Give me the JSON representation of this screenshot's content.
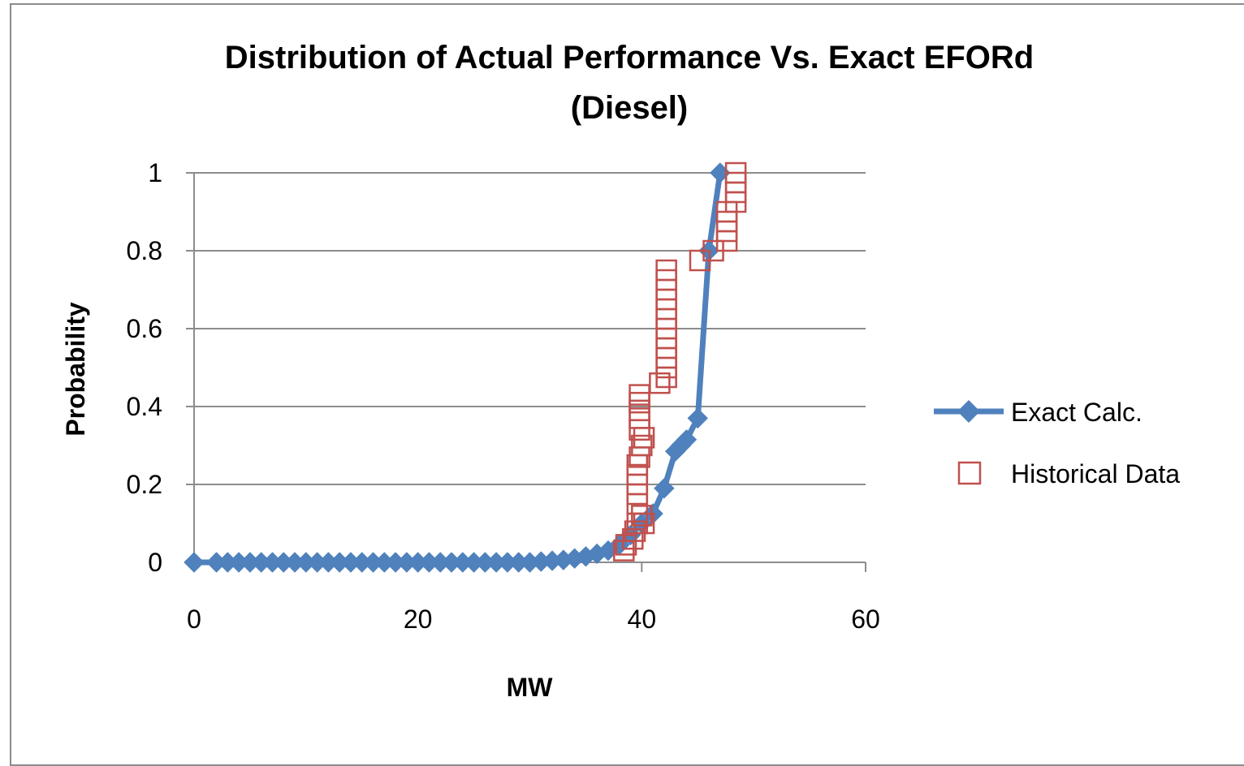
{
  "chart_data": {
    "type": "scatter",
    "title": "Distribution of Actual Performance Vs. Exact EFORd",
    "subtitle": "(Diesel)",
    "xlabel": "MW",
    "ylabel": "Probability",
    "xlim": [
      0,
      60
    ],
    "ylim": [
      0,
      1
    ],
    "xticks": [
      "0",
      "20",
      "40",
      "60"
    ],
    "yticks": [
      "0",
      "0.2",
      "0.4",
      "0.6",
      "0.8",
      "1"
    ],
    "grid": "horizontal",
    "legend_position": "right",
    "series": [
      {
        "name": "Exact Calc.",
        "style": "line-diamond",
        "color": "#4f81bd",
        "points": [
          [
            0,
            0
          ],
          [
            2,
            0
          ],
          [
            3,
            0
          ],
          [
            4,
            0
          ],
          [
            5,
            0
          ],
          [
            6,
            0
          ],
          [
            7,
            0
          ],
          [
            8,
            0
          ],
          [
            9,
            0
          ],
          [
            10,
            0
          ],
          [
            11,
            0
          ],
          [
            12,
            0
          ],
          [
            13,
            0
          ],
          [
            14,
            0
          ],
          [
            15,
            0
          ],
          [
            16,
            0
          ],
          [
            17,
            0
          ],
          [
            18,
            0
          ],
          [
            19,
            0
          ],
          [
            20,
            0
          ],
          [
            21,
            0
          ],
          [
            22,
            0
          ],
          [
            23,
            0
          ],
          [
            24,
            0
          ],
          [
            25,
            0
          ],
          [
            26,
            0
          ],
          [
            27,
            0
          ],
          [
            28,
            0
          ],
          [
            29,
            0
          ],
          [
            30,
            0
          ],
          [
            31,
            0.002
          ],
          [
            32,
            0.004
          ],
          [
            33,
            0.006
          ],
          [
            34,
            0.01
          ],
          [
            35,
            0.015
          ],
          [
            36,
            0.022
          ],
          [
            37,
            0.03
          ],
          [
            38,
            0.045
          ],
          [
            39,
            0.07
          ],
          [
            40,
            0.1
          ],
          [
            41,
            0.125
          ],
          [
            42,
            0.19
          ],
          [
            43,
            0.285
          ],
          [
            43.5,
            0.3
          ],
          [
            44,
            0.315
          ],
          [
            45,
            0.37
          ],
          [
            46,
            0.8
          ],
          [
            47,
            1
          ]
        ]
      },
      {
        "name": "Historical Data",
        "style": "open-square",
        "color": "#c0504d",
        "points": [
          [
            38.4,
            0.03
          ],
          [
            38.6,
            0.045
          ],
          [
            39.2,
            0.06
          ],
          [
            39.4,
            0.08
          ],
          [
            39.6,
            0.1
          ],
          [
            40,
            0.12
          ],
          [
            40.2,
            0.1
          ],
          [
            39.6,
            0.15
          ],
          [
            39.6,
            0.175
          ],
          [
            39.6,
            0.2
          ],
          [
            39.6,
            0.225
          ],
          [
            39.6,
            0.25
          ],
          [
            39.8,
            0.27
          ],
          [
            40,
            0.3
          ],
          [
            40.2,
            0.32
          ],
          [
            39.8,
            0.34
          ],
          [
            39.8,
            0.37
          ],
          [
            39.8,
            0.39
          ],
          [
            39.8,
            0.41
          ],
          [
            39.8,
            0.43
          ],
          [
            41.6,
            0.46
          ],
          [
            42.2,
            0.475
          ],
          [
            42.2,
            0.5
          ],
          [
            42.2,
            0.525
          ],
          [
            42.2,
            0.55
          ],
          [
            42.2,
            0.575
          ],
          [
            42.2,
            0.6
          ],
          [
            42.2,
            0.625
          ],
          [
            42.2,
            0.65
          ],
          [
            42.2,
            0.675
          ],
          [
            42.2,
            0.7
          ],
          [
            42.2,
            0.725
          ],
          [
            42.2,
            0.75
          ],
          [
            45.2,
            0.775
          ],
          [
            46.4,
            0.8
          ],
          [
            47.6,
            0.825
          ],
          [
            47.6,
            0.85
          ],
          [
            47.6,
            0.875
          ],
          [
            47.6,
            0.9
          ],
          [
            48.4,
            0.925
          ],
          [
            48.4,
            0.95
          ],
          [
            48.4,
            0.975
          ],
          [
            48.4,
            1.0
          ]
        ]
      }
    ]
  }
}
